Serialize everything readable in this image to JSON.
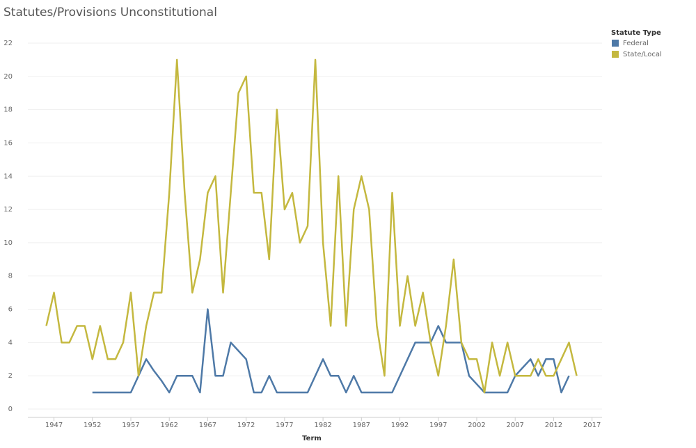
{
  "chart_data": {
    "type": "line",
    "title": "Statutes/Provisions Unconstitutional",
    "x_label": "Term",
    "legend_title": "Statute Type",
    "legend": "right",
    "x": [
      1946,
      1947,
      1948,
      1949,
      1950,
      1951,
      1952,
      1953,
      1954,
      1955,
      1956,
      1957,
      1958,
      1959,
      1960,
      1961,
      1962,
      1963,
      1964,
      1965,
      1966,
      1967,
      1968,
      1969,
      1970,
      1971,
      1972,
      1973,
      1974,
      1975,
      1976,
      1977,
      1978,
      1979,
      1980,
      1981,
      1982,
      1983,
      1984,
      1985,
      1986,
      1987,
      1988,
      1989,
      1990,
      1991,
      1992,
      1993,
      1994,
      1995,
      1996,
      1997,
      1998,
      1999,
      2000,
      2001,
      2002,
      2003,
      2004,
      2005,
      2006,
      2007,
      2008,
      2009,
      2010,
      2011,
      2012,
      2013,
      2014,
      2015
    ],
    "series": [
      {
        "name": "Federal",
        "color": "#4e79a7",
        "values": [
          null,
          null,
          null,
          null,
          null,
          null,
          1,
          1,
          1,
          1,
          1,
          1,
          2,
          3,
          2.3,
          1.7,
          1,
          2,
          2,
          2,
          1,
          6,
          2,
          2,
          4,
          3.5,
          3,
          1,
          1,
          2,
          1,
          1,
          1,
          1,
          1,
          2,
          3,
          2,
          2,
          1,
          2,
          1,
          1,
          1,
          1,
          1,
          2,
          3,
          4,
          4,
          4,
          5,
          4,
          4,
          4,
          2,
          1.5,
          1,
          1,
          1,
          1,
          2,
          2.5,
          3,
          2,
          3,
          3,
          1,
          2,
          null
        ]
      },
      {
        "name": "State/Local",
        "color": "#c4b83f",
        "values": [
          5,
          7,
          4,
          4,
          5,
          5,
          3,
          5,
          3,
          3,
          4,
          7,
          2,
          5,
          7,
          7,
          13,
          21,
          13,
          7,
          9,
          13,
          14,
          7,
          13,
          19,
          20,
          13,
          13,
          9,
          18,
          12,
          13,
          10,
          11,
          21,
          10,
          5,
          14,
          5,
          12,
          14,
          12,
          5,
          2,
          13,
          5,
          8,
          5,
          7,
          4,
          2,
          5,
          9,
          4,
          3,
          3,
          1,
          4,
          2,
          4,
          2,
          2,
          2,
          3,
          2,
          2,
          3,
          4,
          2
        ]
      }
    ],
    "xlim": [
      1943.6,
      2018.3
    ],
    "xticks": [
      1947,
      1952,
      1957,
      1962,
      1967,
      1972,
      1977,
      1982,
      1987,
      1992,
      1997,
      2002,
      2007,
      2012,
      2017
    ],
    "ylim": [
      -0.5,
      22.5
    ],
    "yticks": [
      0,
      2,
      4,
      6,
      8,
      10,
      12,
      14,
      16,
      18,
      20,
      22
    ],
    "grid": true
  }
}
